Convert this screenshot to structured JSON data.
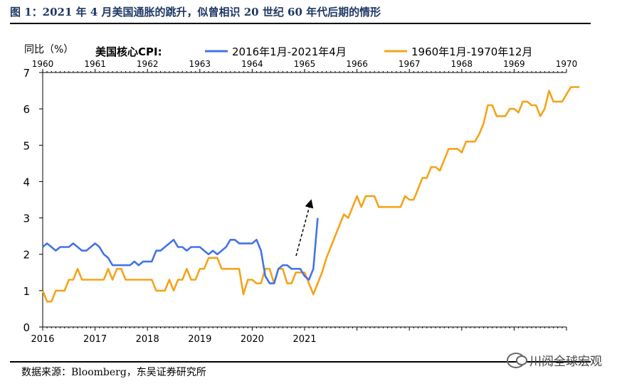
{
  "figure": {
    "title": "图 1：2021 年 4 月美国通胀的跳升，似曾相识 20 世纪 60 年代后期的情形",
    "source": "数据来源：Bloomberg，东吴证券研究所",
    "watermark": "川阅全球宏观"
  },
  "colors": {
    "series_2016": "#4472e8",
    "series_1960": "#f5a31a",
    "title": "#1f3864",
    "arrow": "#000000"
  },
  "chart_data": {
    "type": "line",
    "ylabel": "同比（%）",
    "legend_title": "美国核心CPI:",
    "legend_position": "top",
    "ylim": [
      0,
      7
    ],
    "yticks": [
      "0",
      "1",
      "2",
      "3",
      "4",
      "5",
      "6",
      "7"
    ],
    "x_bottom_ticks": [
      "2016",
      "2017",
      "2018",
      "2019",
      "2020",
      "2021"
    ],
    "x_top_ticks": [
      "1960",
      "1961",
      "1962",
      "1963",
      "1964",
      "1965",
      "1966",
      "1967",
      "1968",
      "1969",
      "1970"
    ],
    "months_per_year": 12,
    "grid": false,
    "annotation": "dashed arrow pointing up near 2021",
    "series": [
      {
        "name": "2016年1月-2021年4月",
        "axis": "bottom",
        "start": "2016-01",
        "values": [
          2.2,
          2.3,
          2.2,
          2.1,
          2.2,
          2.2,
          2.2,
          2.3,
          2.2,
          2.1,
          2.1,
          2.2,
          2.3,
          2.2,
          2.0,
          1.9,
          1.7,
          1.7,
          1.7,
          1.7,
          1.7,
          1.8,
          1.7,
          1.8,
          1.8,
          1.8,
          2.1,
          2.1,
          2.2,
          2.3,
          2.4,
          2.2,
          2.2,
          2.1,
          2.2,
          2.2,
          2.2,
          2.1,
          2.0,
          2.1,
          2.0,
          2.1,
          2.2,
          2.4,
          2.4,
          2.3,
          2.3,
          2.3,
          2.3,
          2.4,
          2.1,
          1.4,
          1.2,
          1.2,
          1.6,
          1.7,
          1.7,
          1.6,
          1.6,
          1.6,
          1.4,
          1.3,
          1.6,
          3.0
        ]
      },
      {
        "name": "1960年1月-1970年12月",
        "axis": "top",
        "start": "1960-01",
        "values": [
          1.0,
          0.7,
          0.7,
          1.0,
          1.0,
          1.0,
          1.3,
          1.3,
          1.6,
          1.3,
          1.3,
          1.3,
          1.3,
          1.3,
          1.3,
          1.6,
          1.3,
          1.6,
          1.6,
          1.3,
          1.3,
          1.3,
          1.3,
          1.3,
          1.3,
          1.3,
          1.0,
          1.0,
          1.0,
          1.3,
          1.0,
          1.3,
          1.3,
          1.6,
          1.3,
          1.3,
          1.6,
          1.6,
          1.9,
          1.9,
          1.9,
          1.6,
          1.6,
          1.6,
          1.6,
          1.6,
          0.9,
          1.3,
          1.3,
          1.2,
          1.2,
          1.6,
          1.6,
          1.2,
          1.6,
          1.6,
          1.2,
          1.2,
          1.5,
          1.5,
          1.5,
          1.2,
          0.9,
          1.2,
          1.5,
          1.9,
          2.2,
          2.5,
          2.8,
          3.1,
          3.0,
          3.3,
          3.6,
          3.3,
          3.6,
          3.6,
          3.6,
          3.3,
          3.3,
          3.3,
          3.3,
          3.3,
          3.3,
          3.6,
          3.5,
          3.5,
          3.8,
          4.1,
          4.1,
          4.4,
          4.4,
          4.3,
          4.6,
          4.9,
          4.9,
          4.9,
          4.8,
          5.1,
          5.1,
          5.1,
          5.3,
          5.6,
          6.1,
          6.1,
          5.8,
          5.8,
          5.8,
          6.0,
          6.0,
          5.9,
          6.2,
          6.2,
          6.1,
          6.1,
          5.8,
          6.0,
          6.5,
          6.2,
          6.2,
          6.2,
          6.4,
          6.6,
          6.6,
          6.6
        ]
      }
    ]
  }
}
